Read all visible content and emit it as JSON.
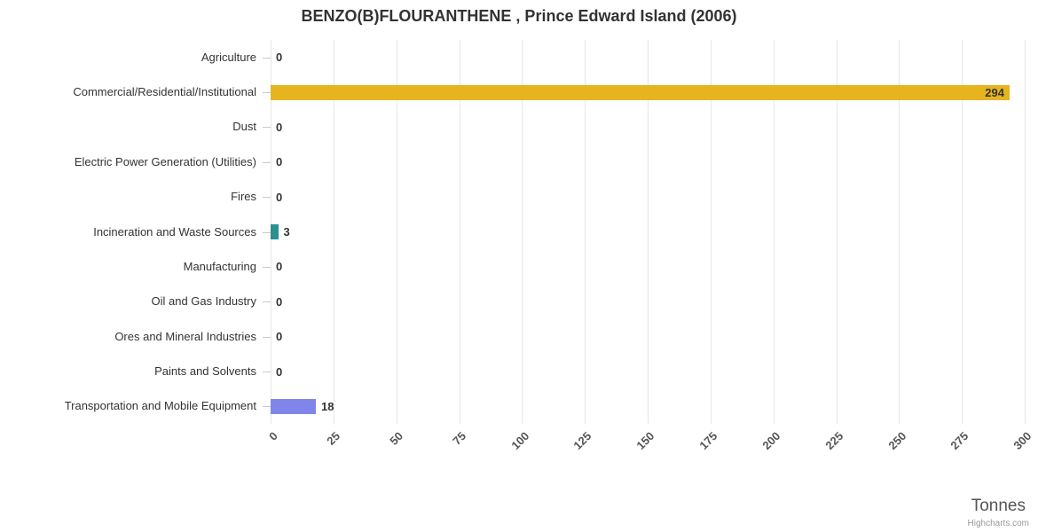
{
  "title": "BENZO(B)FLOURANTHENE , Prince Edward Island (2006)",
  "credit": "Highcharts.com",
  "chart_data": {
    "type": "bar",
    "orientation": "horizontal",
    "title": "BENZO(B)FLOURANTHENE , Prince Edward Island (2006)",
    "categories": [
      "Agriculture",
      "Commercial/Residential/Institutional",
      "Dust",
      "Electric Power Generation (Utilities)",
      "Fires",
      "Incineration and Waste Sources",
      "Manufacturing",
      "Oil and Gas Industry",
      "Ores and Mineral Industries",
      "Paints and Solvents",
      "Transportation and Mobile Equipment"
    ],
    "values": [
      0,
      294,
      0,
      0,
      0,
      3,
      0,
      0,
      0,
      0,
      18
    ],
    "bar_colors": [
      "#b0b0b0",
      "#e6b41e",
      "#b0b0b0",
      "#b0b0b0",
      "#b0b0b0",
      "#2b908f",
      "#b0b0b0",
      "#b0b0b0",
      "#b0b0b0",
      "#b0b0b0",
      "#8085e9"
    ],
    "xlabel": "Tonnes",
    "ylabel": "",
    "xlim": [
      0,
      300
    ],
    "xticks": [
      0,
      25,
      50,
      75,
      100,
      125,
      150,
      175,
      200,
      225,
      250,
      275,
      300
    ],
    "grid": true,
    "legend": false,
    "gridline_color": "#e6e6e6",
    "value_label_color": "#333333"
  }
}
